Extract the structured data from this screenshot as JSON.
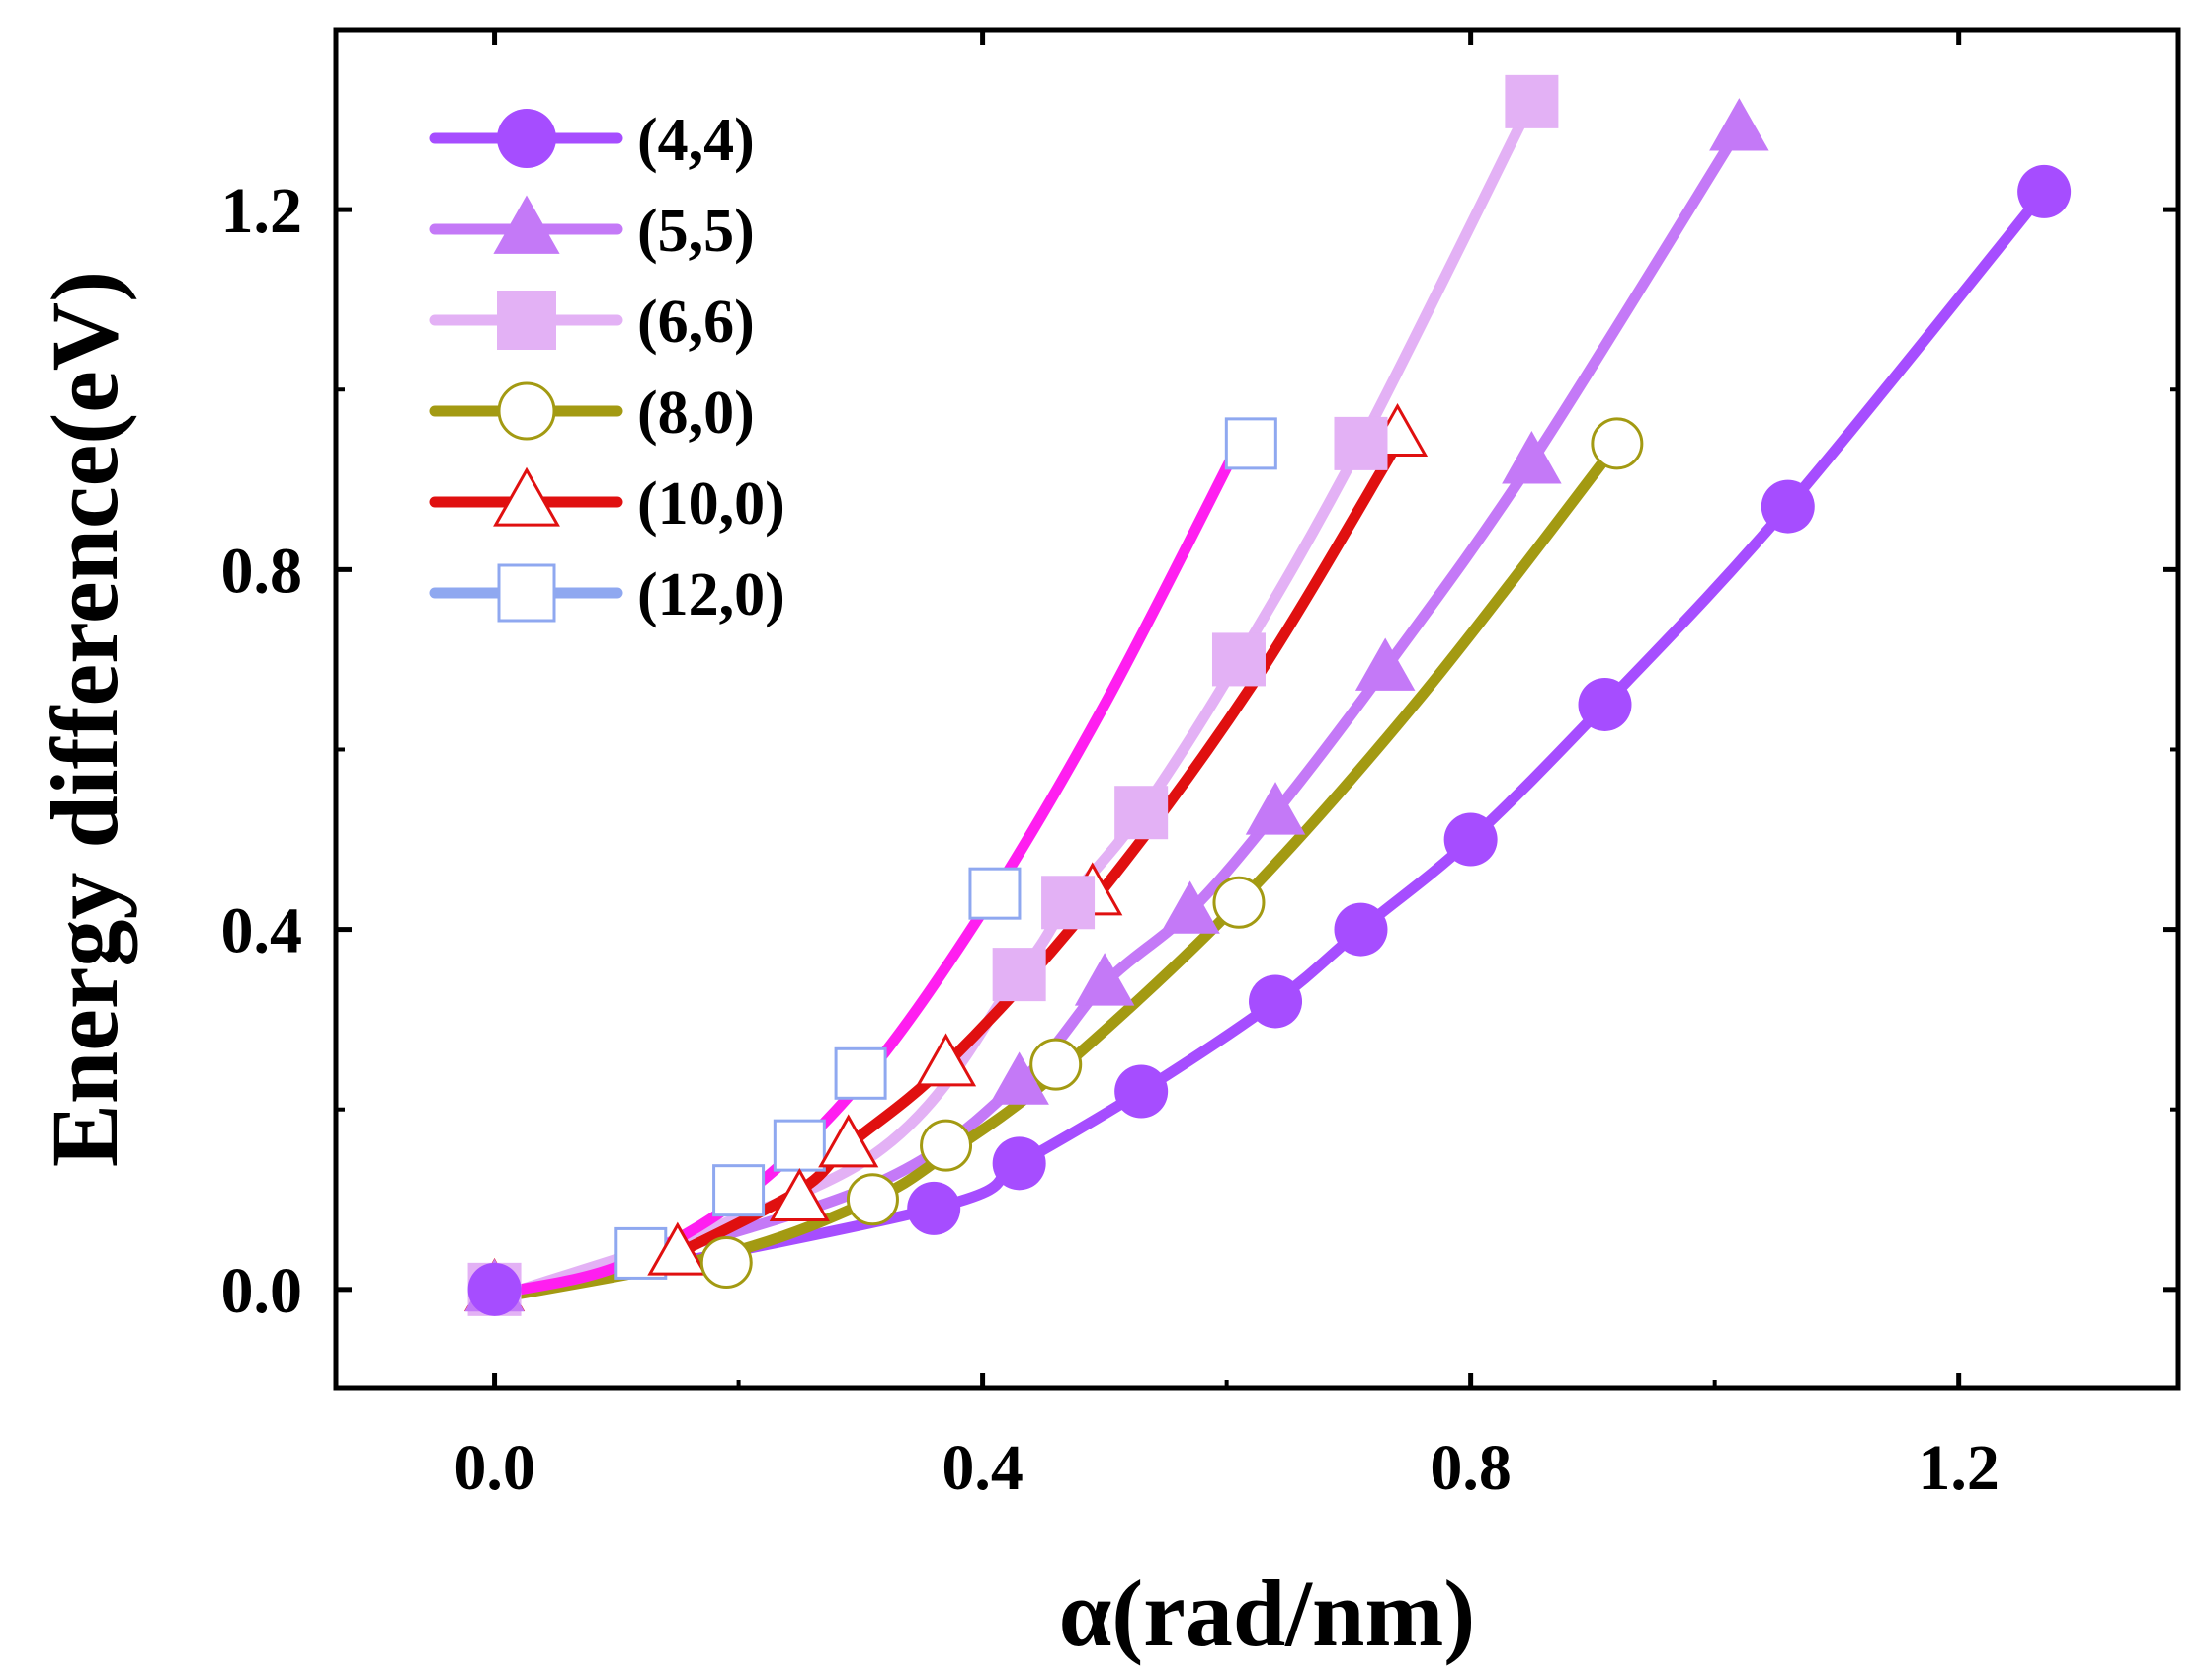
{
  "chart_data": {
    "type": "line",
    "xlabel": "α(rad/nm)",
    "ylabel": "Energy difference(eV)",
    "xlim": [
      -0.13,
      1.38
    ],
    "ylim": [
      -0.11,
      1.4
    ],
    "xticks": [
      0.0,
      0.4,
      0.8,
      1.2
    ],
    "yticks": [
      0.0,
      0.4,
      0.8,
      1.2
    ],
    "xtick_labels": [
      "0.0",
      "0.4",
      "0.8",
      "1.2"
    ],
    "ytick_labels": [
      "0.0",
      "0.4",
      "0.8",
      "1.2"
    ],
    "legend_position": "top-left",
    "grid": false,
    "series": [
      {
        "name": "(4,4)",
        "color": "#a64dff",
        "marker": "circle",
        "filled": true,
        "points": [
          [
            0.0,
            0.0
          ],
          [
            0.36,
            0.09
          ],
          [
            0.43,
            0.14
          ],
          [
            0.53,
            0.22
          ],
          [
            0.64,
            0.32
          ],
          [
            0.71,
            0.4
          ],
          [
            0.8,
            0.5
          ],
          [
            0.91,
            0.65
          ],
          [
            1.06,
            0.87
          ],
          [
            1.27,
            1.22
          ]
        ],
        "fit": [
          [
            0.0,
            -0.01
          ],
          [
            0.36,
            0.09
          ],
          [
            0.43,
            0.14
          ],
          [
            0.53,
            0.22
          ],
          [
            0.64,
            0.32
          ],
          [
            0.71,
            0.4
          ],
          [
            0.8,
            0.5
          ],
          [
            0.91,
            0.65
          ],
          [
            1.06,
            0.87
          ],
          [
            1.27,
            1.22
          ]
        ]
      },
      {
        "name": "(5,5)",
        "color": "#c479f7",
        "marker": "triangle",
        "filled": true,
        "points": [
          [
            0.0,
            0.0
          ],
          [
            0.43,
            0.23
          ],
          [
            0.5,
            0.34
          ],
          [
            0.57,
            0.42
          ],
          [
            0.64,
            0.53
          ],
          [
            0.73,
            0.69
          ],
          [
            0.85,
            0.92
          ],
          [
            1.02,
            1.29
          ]
        ],
        "fit": [
          [
            0.0,
            -0.01
          ],
          [
            0.3,
            0.11
          ],
          [
            0.43,
            0.23
          ],
          [
            0.5,
            0.34
          ],
          [
            0.57,
            0.42
          ],
          [
            0.64,
            0.53
          ],
          [
            0.73,
            0.69
          ],
          [
            0.85,
            0.92
          ],
          [
            1.02,
            1.29
          ]
        ]
      },
      {
        "name": "(6,6)",
        "color": "#e3b1f5",
        "marker": "square",
        "filled": true,
        "points": [
          [
            0.0,
            0.0
          ],
          [
            0.43,
            0.35
          ],
          [
            0.47,
            0.43
          ],
          [
            0.53,
            0.53
          ],
          [
            0.61,
            0.7
          ],
          [
            0.71,
            0.94
          ],
          [
            0.85,
            1.32
          ]
        ],
        "fit": [
          [
            0.0,
            -0.01
          ],
          [
            0.3,
            0.14
          ],
          [
            0.43,
            0.35
          ],
          [
            0.47,
            0.43
          ],
          [
            0.53,
            0.53
          ],
          [
            0.61,
            0.7
          ],
          [
            0.71,
            0.94
          ],
          [
            0.85,
            1.32
          ]
        ]
      },
      {
        "name": "(8,0)",
        "color": "#a39a12",
        "marker": "circle",
        "filled": false,
        "points": [
          [
            0.0,
            0.0
          ],
          [
            0.19,
            0.03
          ],
          [
            0.31,
            0.1
          ],
          [
            0.37,
            0.16
          ],
          [
            0.46,
            0.25
          ],
          [
            0.61,
            0.43
          ],
          [
            0.92,
            0.94
          ]
        ],
        "fit": [
          [
            0.0,
            -0.01
          ],
          [
            0.19,
            0.04
          ],
          [
            0.31,
            0.1
          ],
          [
            0.37,
            0.15
          ],
          [
            0.46,
            0.24
          ],
          [
            0.61,
            0.43
          ],
          [
            0.76,
            0.66
          ],
          [
            0.92,
            0.94
          ]
        ]
      },
      {
        "name": "(10,0)",
        "color": "#e01010",
        "marker": "triangle",
        "filled": false,
        "points": [
          [
            0.0,
            0.0
          ],
          [
            0.15,
            0.04
          ],
          [
            0.25,
            0.1
          ],
          [
            0.29,
            0.16
          ],
          [
            0.37,
            0.25
          ],
          [
            0.49,
            0.44
          ],
          [
            0.74,
            0.95
          ]
        ],
        "fit": [
          [
            0.15,
            0.04
          ],
          [
            0.25,
            0.11
          ],
          [
            0.29,
            0.16
          ],
          [
            0.37,
            0.25
          ],
          [
            0.49,
            0.43
          ],
          [
            0.62,
            0.67
          ],
          [
            0.74,
            0.94
          ]
        ]
      },
      {
        "name": "(12,0)",
        "color": "#8fa8f0",
        "marker": "square",
        "filled": false,
        "points": [
          [
            0.0,
            0.0
          ],
          [
            0.12,
            0.04
          ],
          [
            0.2,
            0.11
          ],
          [
            0.25,
            0.16
          ],
          [
            0.3,
            0.24
          ],
          [
            0.41,
            0.44
          ],
          [
            0.62,
            0.94
          ]
        ],
        "fit": [
          [
            0.0,
            -0.005
          ],
          [
            0.1,
            0.025
          ],
          [
            0.2,
            0.1
          ],
          [
            0.3,
            0.23
          ],
          [
            0.4,
            0.42
          ],
          [
            0.5,
            0.65
          ],
          [
            0.61,
            0.94
          ]
        ],
        "fit_color": "#ff1ef0"
      }
    ]
  }
}
